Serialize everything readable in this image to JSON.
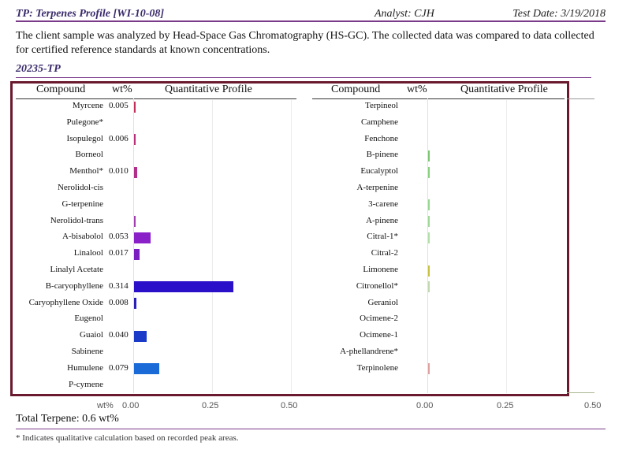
{
  "header": {
    "title": "TP: Terpenes Profile [WI-10-08]",
    "analyst": "Analyst: CJH",
    "test_date": "Test Date: 3/19/2018"
  },
  "intro": "The client sample was analyzed by Head-Space Gas Chromatography (HS-GC).  The collected data was compared to data collected for certified reference standards at known concentrations.",
  "sample_id": "20235-TP",
  "columns": {
    "compound": "Compound",
    "wt": "wt%",
    "profile": "Quantitative Profile"
  },
  "left_rows": [
    {
      "name": "Myrcene",
      "value": "0.005",
      "wt": 0.005,
      "color": "#c0305a"
    },
    {
      "name": "Pulegone*",
      "value": "",
      "wt": 0,
      "color": ""
    },
    {
      "name": "Isopulegol",
      "value": "0.006",
      "wt": 0.006,
      "color": "#b82f7a"
    },
    {
      "name": "Borneol",
      "value": "",
      "wt": 0,
      "color": ""
    },
    {
      "name": "Menthol*",
      "value": "0.010",
      "wt": 0.01,
      "color": "#b0308a"
    },
    {
      "name": "Nerolidol-cis",
      "value": "",
      "wt": 0,
      "color": ""
    },
    {
      "name": "G-terpenine",
      "value": "",
      "wt": 0,
      "color": ""
    },
    {
      "name": "Nerolidol-trans",
      "value": "",
      "wt": 0.002,
      "color": "#a040b0"
    },
    {
      "name": "A-bisabolol",
      "value": "0.053",
      "wt": 0.053,
      "color": "#8a20c8"
    },
    {
      "name": "Linalool",
      "value": "0.017",
      "wt": 0.017,
      "color": "#7a1fc0"
    },
    {
      "name": "Linalyl Acetate",
      "value": "",
      "wt": 0,
      "color": ""
    },
    {
      "name": "B-caryophyllene",
      "value": "0.314",
      "wt": 0.314,
      "color": "#2a10c8"
    },
    {
      "name": "Caryophyllene Oxide",
      "value": "0.008",
      "wt": 0.008,
      "color": "#2a20b8"
    },
    {
      "name": "Eugenol",
      "value": "",
      "wt": 0,
      "color": ""
    },
    {
      "name": "Guaiol",
      "value": "0.040",
      "wt": 0.04,
      "color": "#1a3ac8"
    },
    {
      "name": "Sabinene",
      "value": "",
      "wt": 0,
      "color": ""
    },
    {
      "name": "Humulene",
      "value": "0.079",
      "wt": 0.079,
      "color": "#1a6ad8"
    },
    {
      "name": "P-cymene",
      "value": "",
      "wt": 0,
      "color": ""
    }
  ],
  "right_rows": [
    {
      "name": "Terpineol",
      "value": "",
      "wt": 0,
      "color": ""
    },
    {
      "name": "Camphene",
      "value": "",
      "wt": 0,
      "color": ""
    },
    {
      "name": "Fenchone",
      "value": "",
      "wt": 0,
      "color": ""
    },
    {
      "name": "B-pinene",
      "value": "",
      "wt": 0.002,
      "color": "#7ac870"
    },
    {
      "name": "Eucalyptol",
      "value": "",
      "wt": 0.002,
      "color": "#8ad080"
    },
    {
      "name": "A-terpenine",
      "value": "",
      "wt": 0,
      "color": ""
    },
    {
      "name": "3-carene",
      "value": "",
      "wt": 0.002,
      "color": "#98d890"
    },
    {
      "name": "A-pinene",
      "value": "",
      "wt": 0.002,
      "color": "#a0d898"
    },
    {
      "name": "Citral-1*",
      "value": "",
      "wt": 0.001,
      "color": "#b0e0a8"
    },
    {
      "name": "Citral-2",
      "value": "",
      "wt": 0,
      "color": ""
    },
    {
      "name": "Limonene",
      "value": "",
      "wt": 0.003,
      "color": "#c8c040"
    },
    {
      "name": "Citronellol*",
      "value": "",
      "wt": 0.001,
      "color": "#c0d8b0"
    },
    {
      "name": "Geraniol",
      "value": "",
      "wt": 0,
      "color": ""
    },
    {
      "name": "Ocimene-2",
      "value": "",
      "wt": 0,
      "color": ""
    },
    {
      "name": "Ocimene-1",
      "value": "",
      "wt": 0,
      "color": ""
    },
    {
      "name": "A-phellandrene*",
      "value": "",
      "wt": 0,
      "color": ""
    },
    {
      "name": "Terpinolene",
      "value": "",
      "wt": 0.002,
      "color": "#e0a0a0"
    }
  ],
  "axis": {
    "label": "wt%",
    "left_ticks": [
      "0.00",
      "0.25",
      "0.50"
    ],
    "right_ticks": [
      "0.00",
      "0.25",
      "0.50"
    ],
    "max": 0.5
  },
  "total": "Total Terpene: 0.6 wt%",
  "footnote": "* Indicates qualitative calculation based on recorded peak areas."
}
